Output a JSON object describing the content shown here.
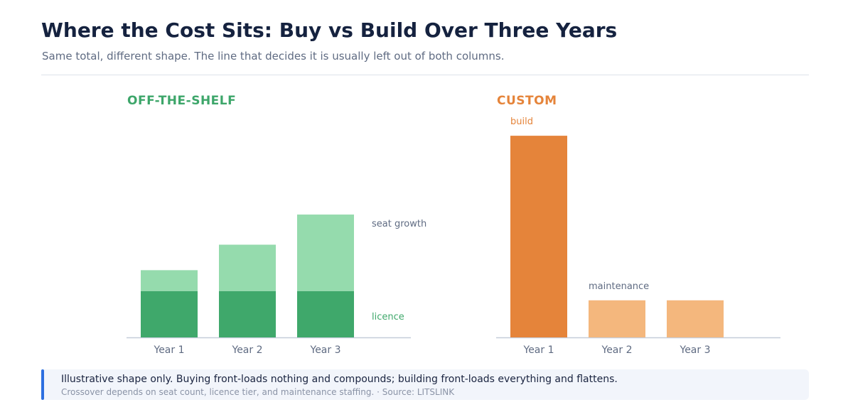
{
  "header": {
    "title": "Where the Cost Sits: Buy vs Build Over Three Years",
    "subtitle": "Same total, different shape. The line that decides it is usually left out of both columns."
  },
  "colors": {
    "licence": "#3fa86b",
    "seat_growth": "#95dbad",
    "build": "#e5843a",
    "maintenance": "#f4b77d",
    "axis": "#c5cdd9",
    "tick_text": "#5f6b82",
    "accent_bar": "#2d6fe0"
  },
  "chart_data": [
    {
      "type": "bar",
      "stacked": true,
      "title": "OFF-THE-SHELF",
      "categories": [
        "Year 1",
        "Year 2",
        "Year 3"
      ],
      "series": [
        {
          "name": "licence",
          "values": [
            2.0,
            2.0,
            2.0
          ]
        },
        {
          "name": "seat growth",
          "values": [
            0.9,
            2.0,
            3.3
          ]
        }
      ],
      "ylim": [
        0,
        9.5
      ],
      "xlabel": "",
      "ylabel": "",
      "grid": false,
      "legend": "direct labels at right of last bar"
    },
    {
      "type": "bar",
      "title": "CUSTOM",
      "categories": [
        "Year 1",
        "Year 2",
        "Year 3"
      ],
      "series": [
        {
          "name": "build",
          "values": [
            8.7,
            0,
            0
          ]
        },
        {
          "name": "maintenance",
          "values": [
            0,
            1.6,
            1.6
          ]
        }
      ],
      "ylim": [
        0,
        9.5
      ],
      "xlabel": "",
      "ylabel": "",
      "grid": false,
      "legend": "direct labels above bars"
    }
  ],
  "callout": {
    "main": "Illustrative shape only. Buying front-loads nothing and compounds; building front-loads everything and flattens.",
    "note": "Crossover depends on seat count, licence tier, and maintenance staffing. · Source: LITSLINK"
  }
}
